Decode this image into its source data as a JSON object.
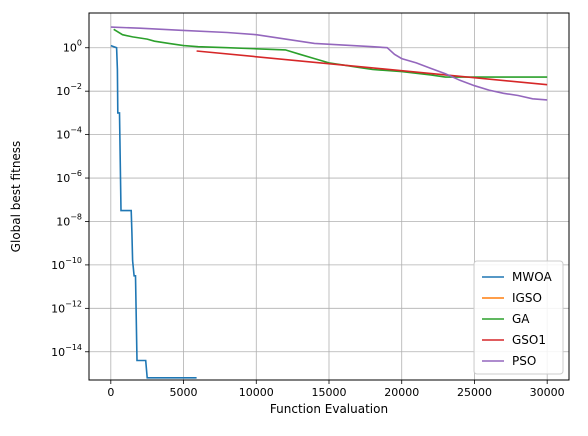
{
  "chart_data": {
    "type": "line",
    "xlabel": "Function Evaluation",
    "ylabel": "Global best fitness",
    "xlim": [
      -1500,
      31500
    ],
    "ylim_exp": [
      -15.3,
      1.6
    ],
    "y_scale": "log",
    "grid": true,
    "legend_position": "lower-right",
    "x_ticks": [
      0,
      5000,
      10000,
      15000,
      20000,
      25000,
      30000
    ],
    "y_tick_exponents": [
      0,
      -2,
      -4,
      -6,
      -8,
      -10,
      -12,
      -14
    ],
    "y_tick_labels": [
      "10^0",
      "10^-2",
      "10^-4",
      "10^-6",
      "10^-8",
      "10^-10",
      "10^-12",
      "10^-14"
    ],
    "series": [
      {
        "name": "MWOA",
        "color": "#1f77b4",
        "x": [
          0,
          400,
          450,
          480,
          500,
          600,
          700,
          1400,
          1450,
          1500,
          1600,
          1700,
          1800,
          1900,
          2400,
          2500,
          5900
        ],
        "y_exp": [
          0.1,
          0.0,
          -1.0,
          -3.0,
          -3.0,
          -3.0,
          -7.5,
          -7.5,
          -8.5,
          -9.8,
          -10.5,
          -10.5,
          -14.4,
          -14.4,
          -14.4,
          -15.2,
          -15.2
        ]
      },
      {
        "name": "IGSO",
        "color": "#ff7f0e",
        "x": [],
        "y_exp": []
      },
      {
        "name": "GA",
        "color": "#2ca02c",
        "x": [
          200,
          800,
          1500,
          2500,
          3000,
          4000,
          5000,
          6000,
          8000,
          10000,
          12000,
          13000,
          14000,
          15000,
          16000,
          17000,
          18000,
          20000,
          22000,
          23000,
          25000,
          30000
        ],
        "y_exp": [
          0.85,
          0.6,
          0.5,
          0.4,
          0.3,
          0.2,
          0.1,
          0.05,
          0.0,
          -0.05,
          -0.1,
          -0.3,
          -0.5,
          -0.7,
          -0.8,
          -0.9,
          -1.0,
          -1.1,
          -1.25,
          -1.35,
          -1.35,
          -1.35
        ]
      },
      {
        "name": "GSO1",
        "color": "#d62728",
        "x": [
          5900,
          30000
        ],
        "y_exp": [
          -0.15,
          -1.7
        ]
      },
      {
        "name": "PSO",
        "color": "#9467bd",
        "x": [
          0,
          2000,
          5000,
          8000,
          10000,
          12000,
          14000,
          16000,
          18000,
          19000,
          19500,
          20000,
          21000,
          22000,
          23000,
          24000,
          25000,
          26000,
          27000,
          28000,
          29000,
          30000
        ],
        "y_exp": [
          0.95,
          0.9,
          0.8,
          0.7,
          0.6,
          0.4,
          0.2,
          0.12,
          0.05,
          0.0,
          -0.3,
          -0.5,
          -0.7,
          -0.95,
          -1.2,
          -1.5,
          -1.75,
          -1.95,
          -2.1,
          -2.2,
          -2.35,
          -2.4
        ]
      }
    ]
  }
}
